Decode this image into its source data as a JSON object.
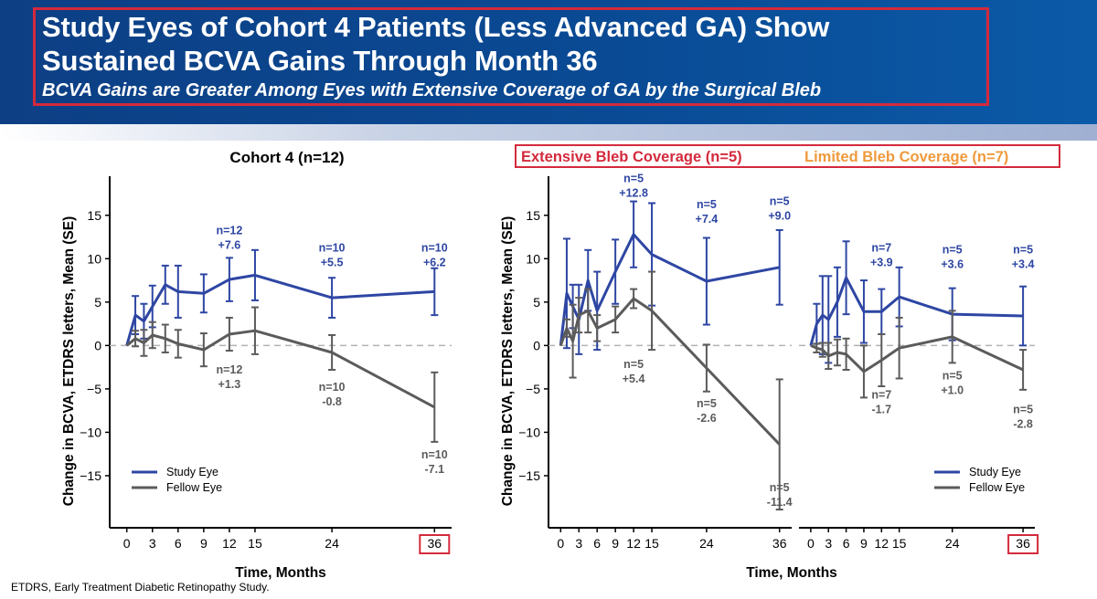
{
  "header": {
    "title_line1": "Study Eyes of Cohort 4 Patients (Less Advanced GA) Show",
    "title_line2": "Sustained BCVA Gains Through Month 36",
    "subtitle": "BCVA Gains are Greater Among Eyes with Extensive Coverage of GA by the Surgical Bleb"
  },
  "footnote": "ETDRS, Early Treatment Diabetic Retinopathy Study.",
  "colors": {
    "study": "#2e46a3",
    "fellow": "#5b5b5b",
    "extensive": "#d42a3c",
    "limited": "#ef9a3c",
    "highlight_box": "#d42a3c"
  },
  "right_header": {
    "extensive_label": "Extensive Bleb Coverage (n=5)",
    "limited_label": "Limited Bleb Coverage (n=7)"
  },
  "chart_data": [
    {
      "type": "line",
      "title": "Cohort 4 (n=12)",
      "xlabel": "Time, Months",
      "ylabel": "Change in BCVA, ETDRS letters, Mean (SE)",
      "x_ticks": [
        "0",
        "3",
        "6",
        "9",
        "12",
        "15",
        "24",
        "36"
      ],
      "y_ticks": [
        "15",
        "10",
        "5",
        "0",
        "-5",
        "-10",
        "-15"
      ],
      "ylim": [
        -21,
        19.5
      ],
      "xlim": [
        -2,
        38
      ],
      "reference_line": 0,
      "highlight_tick": "36",
      "legend": "bottom-left",
      "series": [
        {
          "name": "Study Eye",
          "x": [
            0,
            1,
            2,
            3,
            4.5,
            6,
            9,
            12,
            15,
            24,
            36
          ],
          "y": [
            0,
            3.5,
            2.8,
            4.5,
            7.0,
            6.2,
            6.0,
            7.6,
            8.1,
            5.5,
            6.2
          ],
          "err": [
            0,
            2.2,
            2.0,
            2.4,
            2.2,
            3.0,
            2.2,
            2.5,
            2.9,
            2.3,
            2.7
          ]
        },
        {
          "name": "Fellow Eye",
          "x": [
            0,
            1,
            2,
            3,
            4.5,
            6,
            9,
            12,
            15,
            24,
            36
          ],
          "y": [
            0,
            0.8,
            0.3,
            1.2,
            0.8,
            0.2,
            -0.5,
            1.3,
            1.7,
            -0.8,
            -7.1
          ],
          "err": [
            0,
            0.9,
            1.5,
            1.5,
            1.6,
            1.6,
            1.9,
            1.9,
            2.7,
            2.0,
            4.0
          ]
        }
      ],
      "annotations": [
        {
          "x": 12,
          "y": 12.8,
          "line1": "n=12",
          "line2": "+7.6",
          "series": "study"
        },
        {
          "x": 24,
          "y": 10.8,
          "line1": "n=10",
          "line2": "+5.5",
          "series": "study"
        },
        {
          "x": 36,
          "y": 10.8,
          "line1": "n=10",
          "line2": "+6.2",
          "series": "study"
        },
        {
          "x": 12,
          "y": -3.2,
          "line1": "n=12",
          "line2": "+1.3",
          "series": "fellow"
        },
        {
          "x": 24,
          "y": -5.2,
          "line1": "n=10",
          "line2": "-0.8",
          "series": "fellow"
        },
        {
          "x": 36,
          "y": -13.0,
          "line1": "n=10",
          "line2": "-7.1",
          "series": "fellow"
        }
      ]
    },
    {
      "type": "line",
      "title": "Extensive Bleb Coverage (n=5)",
      "xlabel": "Time, Months",
      "ylabel": "Change in BCVA, ETDRS letters, Mean (SE)",
      "x_ticks": [
        "0",
        "3",
        "6",
        "9",
        "12",
        "15",
        "24",
        "36"
      ],
      "y_ticks": [
        "15",
        "10",
        "5",
        "0",
        "-5",
        "-10",
        "-15"
      ],
      "ylim": [
        -21,
        19.5
      ],
      "xlim": [
        -2,
        38
      ],
      "reference_line": 0,
      "series": [
        {
          "name": "Study Eye",
          "x": [
            0,
            1,
            2,
            3,
            4.5,
            6,
            9,
            12,
            15,
            24,
            36
          ],
          "y": [
            0,
            6.0,
            4.5,
            3.0,
            7.5,
            4.0,
            8.5,
            12.8,
            10.5,
            7.4,
            9.0
          ],
          "err": [
            0,
            6.3,
            2.5,
            4.0,
            3.5,
            4.5,
            3.7,
            3.8,
            5.9,
            5.0,
            4.3
          ]
        },
        {
          "name": "Fellow Eye",
          "x": [
            0,
            1,
            2,
            3,
            4.5,
            6,
            9,
            12,
            15,
            24,
            36
          ],
          "y": [
            0,
            2.0,
            0.5,
            3.5,
            4.0,
            2.0,
            3.0,
            5.4,
            4.0,
            -2.6,
            -11.4
          ],
          "err": [
            0,
            1.0,
            4.2,
            2.0,
            2.5,
            1.5,
            1.5,
            1.1,
            4.5,
            2.7,
            7.5
          ]
        }
      ],
      "annotations": [
        {
          "x": 12,
          "y": 18.8,
          "line1": "n=5",
          "line2": "+12.8",
          "series": "study"
        },
        {
          "x": 24,
          "y": 15.8,
          "line1": "n=5",
          "line2": "+7.4",
          "series": "study"
        },
        {
          "x": 36,
          "y": 16.2,
          "line1": "n=5",
          "line2": "+9.0",
          "series": "study"
        },
        {
          "x": 12,
          "y": -2.6,
          "line1": "n=5",
          "line2": "+5.4",
          "series": "fellow"
        },
        {
          "x": 24,
          "y": -7.1,
          "line1": "n=5",
          "line2": "-2.6",
          "series": "fellow"
        },
        {
          "x": 36,
          "y": -16.8,
          "line1": "n=5",
          "line2": "-11.4",
          "series": "fellow"
        }
      ]
    },
    {
      "type": "line",
      "title": "Limited Bleb Coverage (n=7)",
      "xlabel": "Time, Months",
      "x_ticks": [
        "0",
        "3",
        "6",
        "9",
        "12",
        "15",
        "24",
        "36"
      ],
      "ylim": [
        -21,
        19.5
      ],
      "xlim": [
        -2,
        38
      ],
      "reference_line": 0,
      "highlight_tick": "36",
      "legend": "bottom-right",
      "series": [
        {
          "name": "Study Eye",
          "x": [
            0,
            1,
            2,
            3,
            4.5,
            6,
            9,
            12,
            15,
            24,
            36
          ],
          "y": [
            0,
            2.5,
            3.5,
            3.0,
            5.0,
            7.8,
            3.9,
            3.9,
            5.6,
            3.6,
            3.4
          ],
          "err": [
            0,
            2.3,
            4.5,
            5.0,
            4.0,
            4.2,
            3.6,
            2.6,
            3.4,
            3.0,
            3.4
          ]
        },
        {
          "name": "Fellow Eye",
          "x": [
            0,
            1,
            2,
            3,
            4.5,
            6,
            9,
            12,
            15,
            24,
            36
          ],
          "y": [
            0,
            -0.3,
            -0.5,
            -1.2,
            -0.8,
            -1.0,
            -3.0,
            -1.7,
            -0.3,
            1.0,
            -2.8
          ],
          "err": [
            0,
            0.5,
            0.8,
            1.5,
            1.5,
            1.8,
            3.0,
            3.0,
            3.5,
            3.0,
            2.3
          ]
        }
      ],
      "annotations": [
        {
          "x": 12,
          "y": 10.8,
          "line1": "n=7",
          "line2": "+3.9",
          "series": "study"
        },
        {
          "x": 24,
          "y": 10.6,
          "line1": "n=5",
          "line2": "+3.6",
          "series": "study"
        },
        {
          "x": 36,
          "y": 10.6,
          "line1": "n=5",
          "line2": "+3.4",
          "series": "study"
        },
        {
          "x": 12,
          "y": -6.1,
          "line1": "n=7",
          "line2": "-1.7",
          "series": "fellow"
        },
        {
          "x": 24,
          "y": -3.9,
          "line1": "n=5",
          "line2": "+1.0",
          "series": "fellow"
        },
        {
          "x": 36,
          "y": -7.8,
          "line1": "n=5",
          "line2": "-2.8",
          "series": "fellow"
        }
      ]
    }
  ]
}
